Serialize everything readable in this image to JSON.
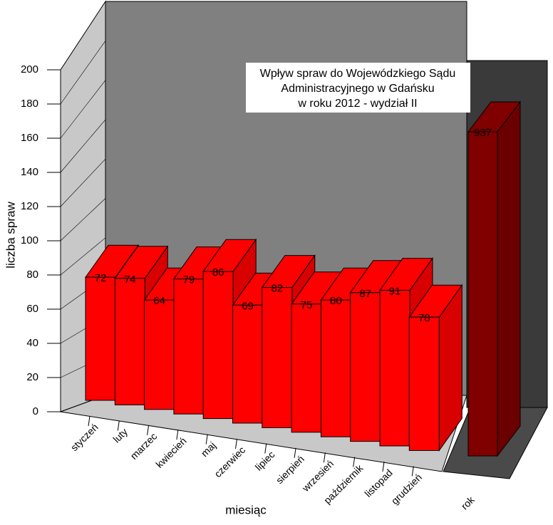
{
  "chart_data": [
    {
      "type": "bar3d",
      "title": [
        "Wpływ spraw do Wojewódzkiego Sądu",
        "Administracyjnego w Gdańsku",
        "w roku 2012 - wydział II"
      ],
      "y_label": "liczba spraw",
      "x_label": "miesiąc",
      "categories": [
        "styczeń",
        "luty",
        "marzec",
        "kwiecień",
        "maj",
        "czerwiec",
        "lipiec",
        "sierpień",
        "wrzesień",
        "październik",
        "listopad",
        "grudzień"
      ],
      "values": [
        72,
        74,
        64,
        79,
        86,
        69,
        82,
        75,
        80,
        87,
        91,
        78
      ],
      "color": "#ff0000",
      "ylim": [
        0,
        200
      ],
      "yticks": [
        0,
        20,
        40,
        60,
        80,
        100,
        120,
        140,
        160,
        180,
        200
      ],
      "grid": true
    },
    {
      "type": "bar3d-total",
      "categories": [
        "rok"
      ],
      "values": [
        937
      ],
      "color": "#800000"
    }
  ]
}
